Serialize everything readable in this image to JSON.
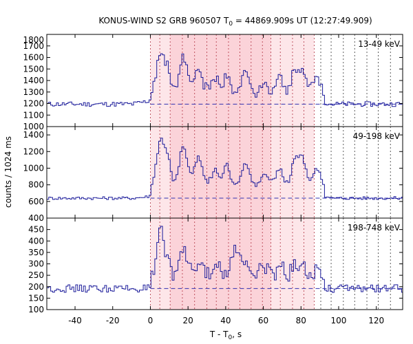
{
  "chart_data": {
    "type": "line",
    "title_main": "KONUS-WIND S2 GRB 960507 T",
    "title_sub": "0",
    "title_rest": " = 44869.909s UT (12:27:49.909)",
    "ylabel": "counts / 1024 ms",
    "xlabel_main": "T - T",
    "xlabel_sub": "0",
    "xlabel_rest": ", s",
    "xlim": [
      -55,
      134
    ],
    "x_ticks": [
      -40,
      -20,
      0,
      20,
      40,
      60,
      80,
      100,
      120
    ],
    "x_tick_labels": [
      "-40",
      "-20",
      "0",
      "20",
      "40",
      "60",
      "80",
      "100",
      "120"
    ],
    "highlight_outer": [
      0,
      87
    ],
    "highlight_inner": [
      10.5,
      64
    ],
    "interval_boundaries": [
      0,
      5,
      10.5,
      17,
      23.5,
      30,
      35,
      41.5,
      47.5,
      53.5,
      59.5,
      64,
      69,
      75.5,
      81.5,
      87,
      90.5,
      96,
      102.5,
      108.5,
      115,
      121,
      127.5
    ],
    "panels": [
      {
        "label": "13-49 keV",
        "ylim": [
          1000,
          1800
        ],
        "y_ticks": [
          1000,
          1100,
          1200,
          1300,
          1400,
          1500,
          1600,
          1700,
          1800
        ],
        "y_tick_labels": [
          "1000",
          "1100",
          "1200",
          "1300",
          "1400",
          "1500",
          "1600",
          "1700",
          "1800"
        ],
        "background": 1195,
        "pulses": [
          [
            5,
            8,
            3
          ],
          [
            9,
            4,
            2
          ],
          [
            17,
            7,
            3
          ],
          [
            25,
            5,
            3
          ],
          [
            34,
            3,
            3
          ],
          [
            40,
            4,
            2
          ],
          [
            50,
            4,
            3
          ],
          [
            60,
            2,
            3
          ],
          [
            68,
            3,
            3
          ],
          [
            76,
            4,
            2
          ],
          [
            80,
            5,
            3
          ],
          [
            88,
            3,
            3
          ]
        ],
        "pulse_scale": 360,
        "pre_bump": 30,
        "noise": 35
      },
      {
        "label": "49-198 keV",
        "ylim": [
          400,
          1500
        ],
        "y_ticks": [
          400,
          600,
          800,
          1000,
          1200,
          1400
        ],
        "y_tick_labels": [
          "400",
          "600",
          "800",
          "1000",
          "1200",
          "1400"
        ],
        "background": 640,
        "pulses": [
          [
            5,
            8,
            3
          ],
          [
            9,
            4,
            2
          ],
          [
            17,
            7,
            3
          ],
          [
            25,
            5,
            3
          ],
          [
            34,
            3,
            3
          ],
          [
            40,
            4,
            2
          ],
          [
            50,
            4,
            3
          ],
          [
            60,
            2,
            3
          ],
          [
            68,
            3,
            3
          ],
          [
            76,
            4,
            2
          ],
          [
            80,
            5,
            3
          ],
          [
            88,
            3,
            3
          ]
        ],
        "pulse_scale": 560,
        "pre_bump": 20,
        "noise": 30
      },
      {
        "label": "198-748 keV",
        "ylim": [
          100,
          500
        ],
        "y_ticks": [
          100,
          150,
          200,
          250,
          300,
          350,
          400,
          450
        ],
        "y_tick_labels": [
          "100",
          "150",
          "200",
          "250",
          "300",
          "350",
          "400",
          "450"
        ],
        "background": 192,
        "pulses": [
          [
            5,
            10,
            2
          ],
          [
            9,
            4,
            2
          ],
          [
            17,
            5,
            3
          ],
          [
            25,
            3,
            3
          ],
          [
            34,
            3,
            3
          ],
          [
            44,
            5,
            3
          ],
          [
            50,
            3,
            3
          ],
          [
            60,
            2,
            3
          ],
          [
            68,
            2,
            3
          ],
          [
            76,
            2,
            2
          ],
          [
            80,
            2,
            3
          ],
          [
            88,
            2,
            3
          ]
        ],
        "pulse_scale": 190,
        "pre_bump": 0,
        "noise": 28
      }
    ]
  }
}
